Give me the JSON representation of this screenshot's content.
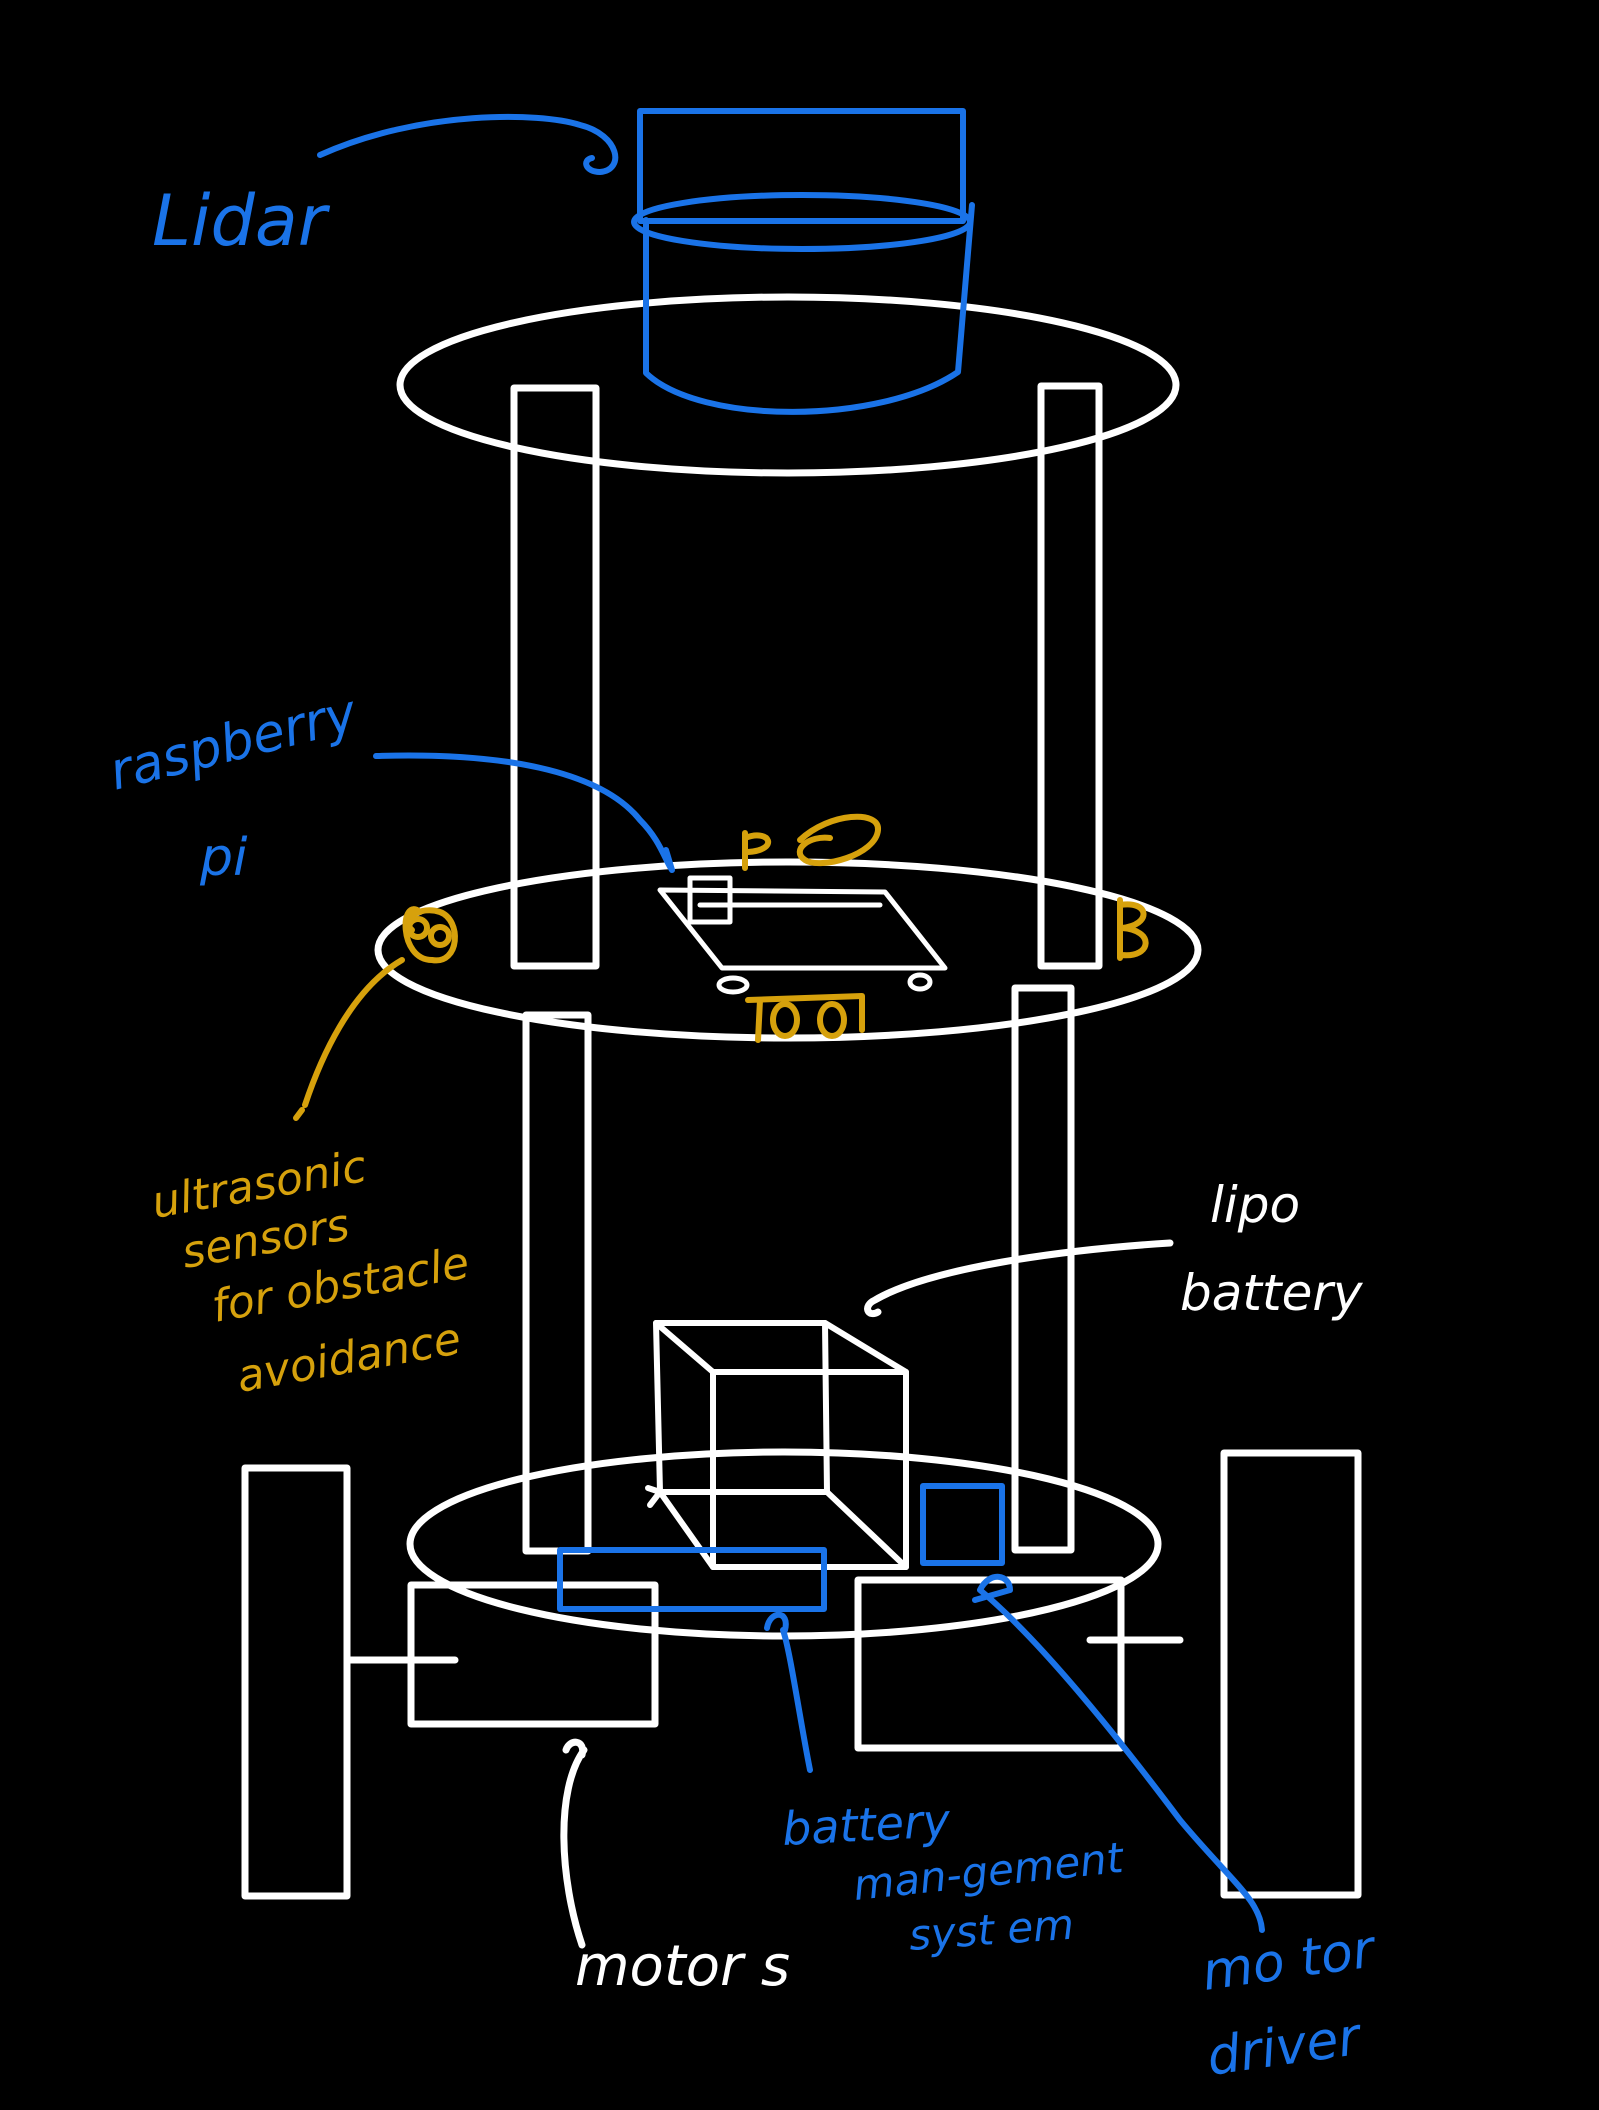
{
  "colors": {
    "background": "#000000",
    "structure": "#ffffff",
    "blue_annotation": "#1a73e8",
    "gold_annotation": "#d6a10c"
  },
  "labels": {
    "lidar": "Lidar",
    "raspberry_line1": "raspberry",
    "raspberry_line2": "pi",
    "ultrasonic_line1": "ultrasonic",
    "ultrasonic_line2": "sensors",
    "ultrasonic_line3": "for obstacle",
    "ultrasonic_line4": "avoidance",
    "lipo_line1": "lipo",
    "lipo_line2": "battery",
    "motors": "motor s",
    "battery_mgmt_line1": "battery",
    "battery_mgmt_line2": "man-gement",
    "battery_mgmt_line3": "syst em",
    "motor_driver_line1": "mo tor",
    "motor_driver_line2": "driver"
  }
}
